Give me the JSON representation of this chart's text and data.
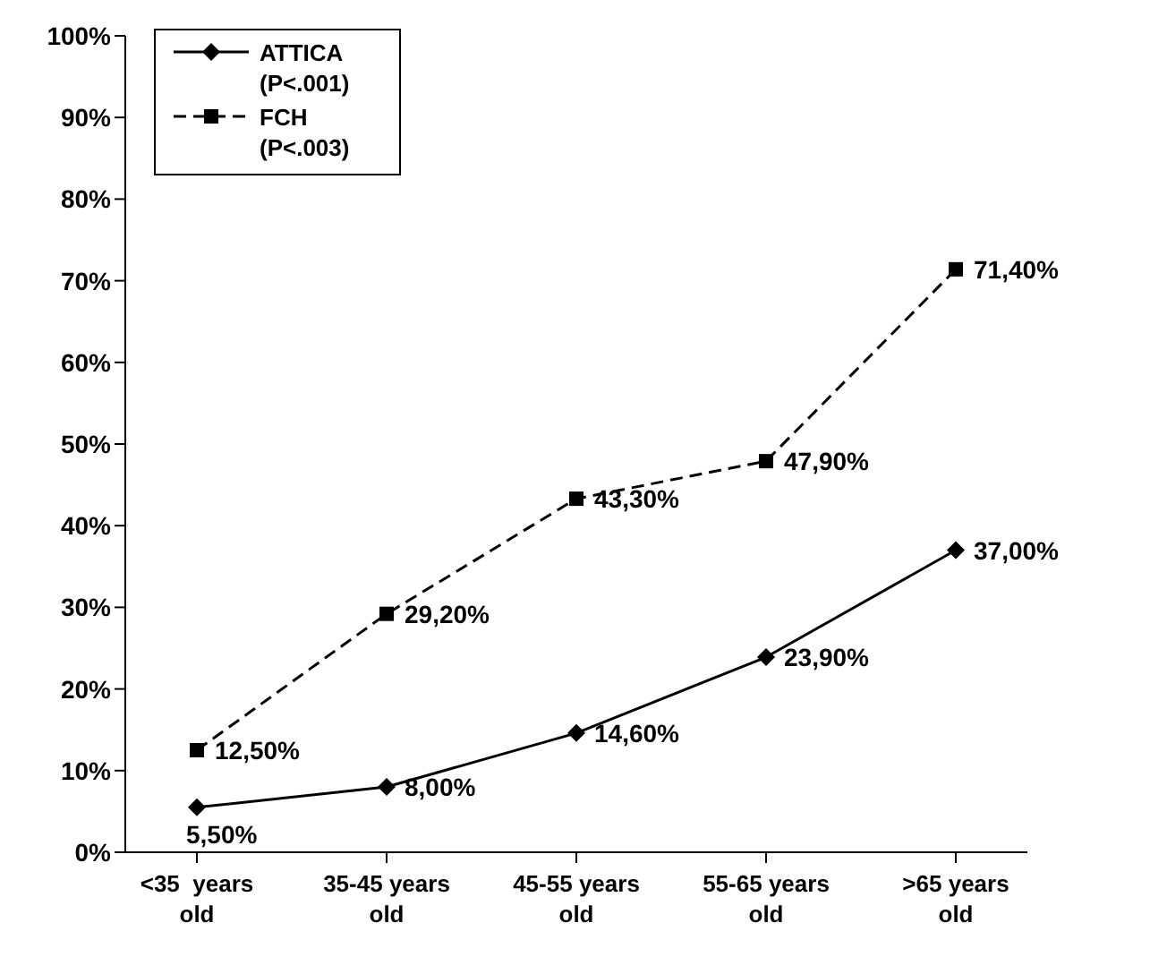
{
  "chart_data": {
    "type": "line",
    "categories": [
      "<35  years old",
      "35-45 years old",
      "45-55 years old",
      "55-65 years old",
      ">65 years old"
    ],
    "series": [
      {
        "name": "ATTICA (P<.001)",
        "color": "#000000",
        "marker": "diamond",
        "line_style": "solid",
        "values": [
          5.5,
          8.0,
          14.6,
          23.9,
          37.0
        ],
        "value_labels": [
          "5,50%",
          "8,00%",
          "14,60%",
          "23,90%",
          "37,00%"
        ]
      },
      {
        "name": "FCH (P<.003)",
        "color": "#000000",
        "marker": "square",
        "line_style": "dashed",
        "values": [
          12.5,
          29.2,
          43.3,
          47.9,
          71.4
        ],
        "value_labels": [
          "12,50%",
          "29,20%",
          "43,30%",
          "47,90%",
          "71,40%"
        ]
      }
    ],
    "ylim": [
      0,
      100
    ],
    "yticks": [
      {
        "value": 0,
        "label": "0%"
      },
      {
        "value": 10,
        "label": "10%"
      },
      {
        "value": 20,
        "label": "20%"
      },
      {
        "value": 30,
        "label": "30%"
      },
      {
        "value": 40,
        "label": "40%"
      },
      {
        "value": 50,
        "label": "50%"
      },
      {
        "value": 60,
        "label": "60%"
      },
      {
        "value": 70,
        "label": "70%"
      },
      {
        "value": 80,
        "label": "80%"
      },
      {
        "value": 90,
        "label": "90%"
      },
      {
        "value": 100,
        "label": "100%"
      }
    ],
    "grid": false,
    "legend": "top left"
  }
}
